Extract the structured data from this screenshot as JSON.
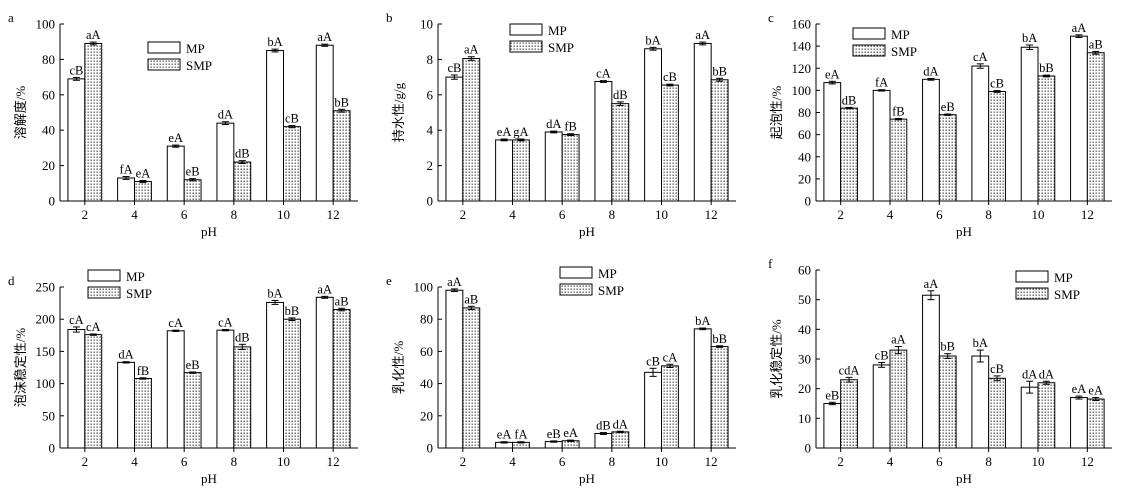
{
  "figure": {
    "background": "#ffffff",
    "bar_stroke": "#000000",
    "mp_fill": "#ffffff",
    "smp_fill": "dotted"
  },
  "chart_data": [
    {
      "panel": "a",
      "type": "bar",
      "categories": [
        "2",
        "4",
        "6",
        "8",
        "10",
        "12"
      ],
      "xlabel": "pH",
      "ylabel": "溶解度/%",
      "ylim": [
        0,
        100
      ],
      "yticks": [
        0,
        20,
        40,
        60,
        80,
        100
      ],
      "legend": "top-right",
      "series": [
        {
          "name": "MP",
          "values": [
            69,
            13,
            31,
            44,
            85,
            88
          ],
          "errors": [
            0.8,
            0.8,
            0.6,
            0.8,
            0.8,
            0.6
          ],
          "labels": [
            "cB",
            "fA",
            "eA",
            "dA",
            "bA",
            "aA"
          ]
        },
        {
          "name": "SMP",
          "values": [
            89,
            11,
            12,
            22,
            42,
            51
          ],
          "errors": [
            0.8,
            0.6,
            0.6,
            0.8,
            0.6,
            0.8
          ],
          "labels": [
            "aA",
            "eA",
            "eB",
            "dB",
            "cB",
            "bB"
          ]
        }
      ]
    },
    {
      "panel": "b",
      "type": "bar",
      "categories": [
        "2",
        "4",
        "6",
        "8",
        "10",
        "12"
      ],
      "xlabel": "pH",
      "ylabel": "持水性/g/g",
      "ylim": [
        0,
        10
      ],
      "yticks": [
        0,
        2,
        4,
        6,
        8,
        10
      ],
      "legend": "top-right",
      "series": [
        {
          "name": "MP",
          "values": [
            7.0,
            3.45,
            3.9,
            6.75,
            8.6,
            8.9
          ],
          "errors": [
            0.12,
            0.05,
            0.05,
            0.05,
            0.08,
            0.08
          ],
          "labels": [
            "cB",
            "eA",
            "dA",
            "cA",
            "bA",
            "aA"
          ]
        },
        {
          "name": "SMP",
          "values": [
            8.05,
            3.45,
            3.75,
            5.5,
            6.55,
            6.85
          ],
          "errors": [
            0.1,
            0.05,
            0.05,
            0.1,
            0.05,
            0.08
          ],
          "labels": [
            "aA",
            "gA",
            "fB",
            "dB",
            "cB",
            "bB"
          ]
        }
      ]
    },
    {
      "panel": "c",
      "type": "bar",
      "categories": [
        "2",
        "4",
        "6",
        "8",
        "10",
        "12"
      ],
      "xlabel": "pH",
      "ylabel": "起泡性/%",
      "ylim": [
        0,
        160
      ],
      "yticks": [
        0,
        20,
        40,
        60,
        80,
        100,
        120,
        140,
        160
      ],
      "legend": "top-center",
      "series": [
        {
          "name": "MP",
          "values": [
            107,
            100,
            110,
            122,
            139,
            149
          ],
          "errors": [
            1.2,
            0.6,
            0.8,
            2,
            2,
            1.2
          ],
          "labels": [
            "eA",
            "fA",
            "dA",
            "cA",
            "bA",
            "aA"
          ]
        },
        {
          "name": "SMP",
          "values": [
            84,
            74,
            78,
            99,
            113,
            134
          ],
          "errors": [
            0.6,
            0.6,
            0.6,
            0.8,
            0.8,
            1.2
          ],
          "labels": [
            "dB",
            "fB",
            "eB",
            "cB",
            "bB",
            "aB"
          ]
        }
      ]
    },
    {
      "panel": "d",
      "type": "bar",
      "categories": [
        "2",
        "4",
        "6",
        "8",
        "10",
        "12"
      ],
      "xlabel": "pH",
      "ylabel": "泡沫稳定性/%",
      "ylim": [
        0,
        250
      ],
      "yticks": [
        0,
        50,
        100,
        150,
        200,
        250
      ],
      "legend": "top-left",
      "series": [
        {
          "name": "MP",
          "values": [
            184,
            133,
            182,
            183,
            226,
            234
          ],
          "errors": [
            4,
            1,
            1,
            1,
            3,
            1.5
          ],
          "labels": [
            "cA",
            "dA",
            "cA",
            "cA",
            "bA",
            "aA"
          ]
        },
        {
          "name": "SMP",
          "values": [
            176,
            108,
            117,
            157,
            200,
            215
          ],
          "errors": [
            1,
            1,
            1,
            4,
            2,
            2
          ],
          "labels": [
            "cA",
            "fB",
            "eB",
            "dB",
            "bB",
            "aB"
          ]
        }
      ]
    },
    {
      "panel": "e",
      "type": "bar",
      "categories": [
        "2",
        "4",
        "6",
        "8",
        "10",
        "12"
      ],
      "xlabel": "pH",
      "ylabel": "乳化性/%",
      "ylim": [
        0,
        100
      ],
      "yticks": [
        0,
        20,
        40,
        60,
        80,
        100
      ],
      "legend": "top-right",
      "series": [
        {
          "name": "MP",
          "values": [
            98,
            3.5,
            4,
            9,
            47,
            74
          ],
          "errors": [
            0.8,
            0.4,
            0.4,
            0.6,
            2.5,
            0.5
          ],
          "labels": [
            "aA",
            "eA",
            "eB",
            "dB",
            "cB",
            "bA"
          ]
        },
        {
          "name": "SMP",
          "values": [
            87,
            3.5,
            4.5,
            10,
            51,
            63
          ],
          "errors": [
            1,
            0.4,
            0.4,
            0.4,
            1,
            0.5
          ],
          "labels": [
            "aB",
            "fA",
            "eA",
            "dA",
            "cA",
            "bB"
          ]
        }
      ]
    },
    {
      "panel": "f",
      "type": "bar",
      "categories": [
        "2",
        "4",
        "6",
        "8",
        "10",
        "12"
      ],
      "xlabel": "pH",
      "ylabel": "乳化稳定性/%",
      "ylim": [
        0,
        60
      ],
      "yticks": [
        0,
        10,
        20,
        30,
        40,
        50,
        60
      ],
      "legend": "top-right",
      "series": [
        {
          "name": "MP",
          "values": [
            15,
            28,
            51.5,
            31,
            20.5,
            17
          ],
          "errors": [
            0.4,
            0.8,
            1.5,
            2,
            2,
            0.5
          ],
          "labels": [
            "eB",
            "cB",
            "aA",
            "bA",
            "dA",
            "eA"
          ]
        },
        {
          "name": "SMP",
          "values": [
            23,
            33,
            31,
            23.5,
            22,
            16.5
          ],
          "errors": [
            0.8,
            1.2,
            0.8,
            0.8,
            0.5,
            0.5
          ],
          "labels": [
            "cdA",
            "aA",
            "bB",
            "cB",
            "dA",
            "eA"
          ]
        }
      ]
    }
  ]
}
